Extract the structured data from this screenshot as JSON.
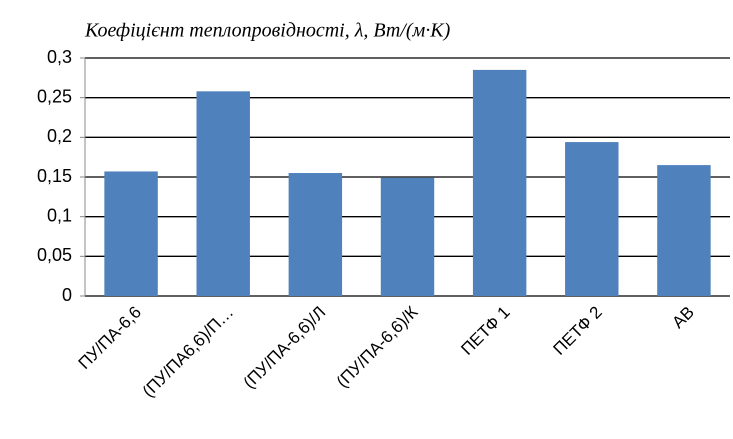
{
  "chart_data": {
    "type": "bar",
    "title": "Коефіцієнт теплопровідності, λ, Вт/(м·К)",
    "categories": [
      "ПУ/ПА-6,6",
      "(ПУ/ПА6,6)/П…",
      "(ПУ/ПА-6,6)/Л",
      "(ПУ/ПА-6,6)/К",
      "ПЕТФ 1",
      "ПЕТФ 2",
      "АВ"
    ],
    "values": [
      0.157,
      0.258,
      0.155,
      0.149,
      0.285,
      0.194,
      0.165
    ],
    "color": "#4f81bd",
    "ylim": [
      0,
      0.3
    ],
    "yticks": [
      0,
      {
        "value": 0.05,
        "label": "0,05"
      },
      {
        "value": 0.1,
        "label": "0,1"
      },
      {
        "value": 0.15,
        "label": "0,15"
      },
      {
        "value": 0.2,
        "label": "0,2"
      },
      {
        "value": 0.25,
        "label": "0,25"
      },
      {
        "value": 0.3,
        "label": "0,3"
      }
    ],
    "grid": true
  }
}
